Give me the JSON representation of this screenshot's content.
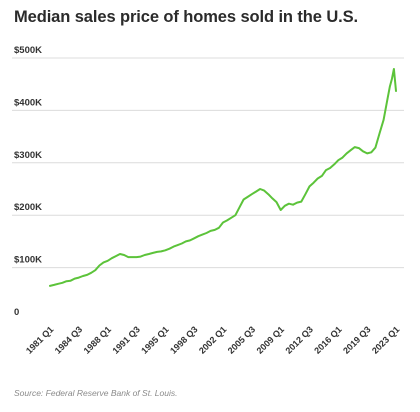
{
  "chart_data": {
    "type": "line",
    "title": "Median sales price of homes sold in the U.S.",
    "source": "Source: Federal Reserve Bank of St. Louis.",
    "y_ticks": [
      "$500K",
      "$400K",
      "$300K",
      "$200K",
      "$100K",
      "0"
    ],
    "y_tick_values": [
      500000,
      400000,
      300000,
      200000,
      100000,
      0
    ],
    "ylim": [
      0,
      500000
    ],
    "x_ticks": [
      "1981 Q1",
      "1984 Q3",
      "1988 Q1",
      "1991 Q3",
      "1995 Q1",
      "1998 Q3",
      "2002 Q1",
      "2005 Q3",
      "2009 Q1",
      "2012 Q3",
      "2016 Q1",
      "2019 Q3",
      "2023 Q1"
    ],
    "x_tick_values": [
      1981.0,
      1984.5,
      1988.0,
      1991.5,
      1995.0,
      1998.5,
      2002.0,
      2005.5,
      2009.0,
      2012.5,
      2016.0,
      2019.5,
      2023.0
    ],
    "xlim": [
      1981.0,
      2023.0
    ],
    "grid": true,
    "series": [
      {
        "color": "#5cc33a",
        "x": [
          1981.0,
          1981.5,
          1982.0,
          1982.5,
          1983.0,
          1983.5,
          1984.0,
          1984.5,
          1985.0,
          1985.5,
          1986.0,
          1986.5,
          1987.0,
          1987.5,
          1988.0,
          1988.5,
          1989.0,
          1989.5,
          1990.0,
          1990.5,
          1991.0,
          1991.5,
          1992.0,
          1992.5,
          1993.0,
          1993.5,
          1994.0,
          1994.5,
          1995.0,
          1995.5,
          1996.0,
          1996.5,
          1997.0,
          1997.5,
          1998.0,
          1998.5,
          1999.0,
          1999.5,
          2000.0,
          2000.5,
          2001.0,
          2001.5,
          2002.0,
          2002.5,
          2003.0,
          2003.5,
          2004.0,
          2004.5,
          2005.0,
          2005.5,
          2006.0,
          2006.5,
          2007.0,
          2007.5,
          2008.0,
          2008.5,
          2009.0,
          2009.5,
          2010.0,
          2010.5,
          2011.0,
          2011.5,
          2012.0,
          2012.5,
          2013.0,
          2013.5,
          2014.0,
          2014.5,
          2015.0,
          2015.5,
          2016.0,
          2016.5,
          2017.0,
          2017.5,
          2018.0,
          2018.5,
          2019.0,
          2019.5,
          2020.0,
          2020.5,
          2021.0,
          2021.5,
          2022.0,
          2022.25,
          2022.5,
          2022.75,
          2023.0
        ],
        "values": [
          65000,
          67000,
          69000,
          71000,
          74000,
          75000,
          79000,
          81000,
          84000,
          86000,
          90000,
          95000,
          104000,
          110000,
          113000,
          118000,
          122000,
          126000,
          124000,
          120000,
          120000,
          120000,
          121000,
          124000,
          126000,
          128000,
          130000,
          131000,
          133000,
          136000,
          140000,
          143000,
          146000,
          150000,
          152000,
          156000,
          160000,
          163000,
          166000,
          170000,
          172000,
          176000,
          186000,
          190000,
          195000,
          200000,
          215000,
          230000,
          235000,
          240000,
          245000,
          250000,
          247000,
          240000,
          232000,
          225000,
          210000,
          218000,
          222000,
          220000,
          224000,
          226000,
          240000,
          255000,
          262000,
          270000,
          275000,
          286000,
          290000,
          297000,
          305000,
          310000,
          318000,
          324000,
          330000,
          328000,
          322000,
          318000,
          320000,
          329000,
          356000,
          382000,
          425000,
          445000,
          460000,
          479000,
          437000
        ]
      }
    ]
  }
}
